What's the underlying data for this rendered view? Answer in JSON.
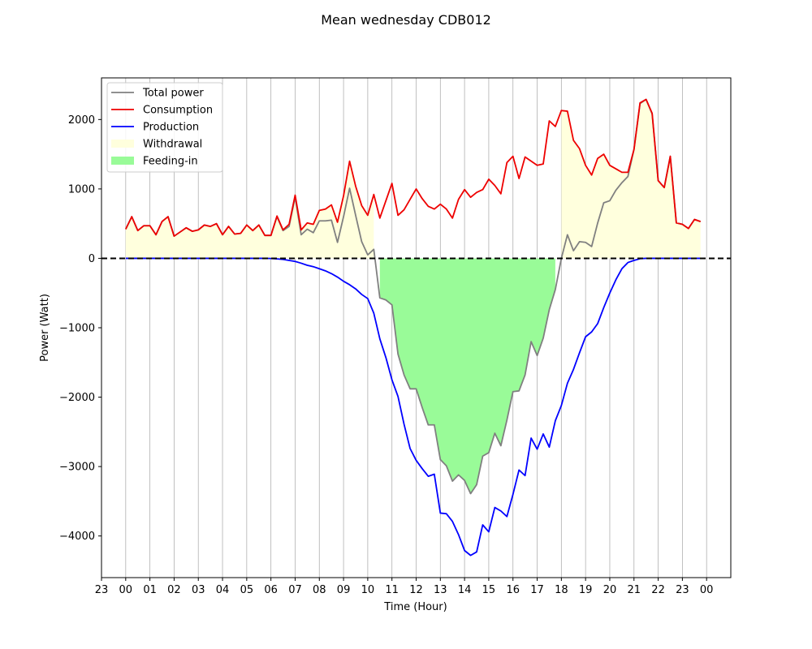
{
  "chart_data": {
    "type": "line",
    "title": "Mean wednesday CDB012",
    "xlabel": "Time (Hour)",
    "ylabel": "Power (Watt)",
    "xlim": [
      -1.0,
      25.0
    ],
    "ylim": [
      -4600,
      2600
    ],
    "grid": "vertical",
    "legend_position": "top-left",
    "x_ticks": [
      -1,
      0,
      1,
      2,
      3,
      4,
      5,
      6,
      7,
      8,
      9,
      10,
      11,
      12,
      13,
      14,
      15,
      16,
      17,
      18,
      19,
      20,
      21,
      22,
      23,
      24
    ],
    "x_tick_labels": [
      "23",
      "00",
      "01",
      "02",
      "03",
      "04",
      "05",
      "06",
      "07",
      "08",
      "09",
      "10",
      "11",
      "12",
      "13",
      "14",
      "15",
      "16",
      "17",
      "18",
      "19",
      "20",
      "21",
      "22",
      "23",
      "00"
    ],
    "y_ticks": [
      -4000,
      -3000,
      -2000,
      -1000,
      0,
      1000,
      2000
    ],
    "y_tick_labels": [
      "−4000",
      "−3000",
      "−2000",
      "−1000",
      "0",
      "1000",
      "2000"
    ],
    "x_step_hours": 0.25,
    "series": [
      {
        "name": "Total power",
        "color": "#808080",
        "values": [
          420,
          600,
          400,
          470,
          470,
          340,
          530,
          600,
          320,
          380,
          440,
          390,
          410,
          480,
          460,
          500,
          340,
          460,
          350,
          360,
          480,
          400,
          480,
          330,
          330,
          600,
          400,
          460,
          880,
          340,
          420,
          370,
          540,
          540,
          550,
          230,
          600,
          1010,
          620,
          240,
          50,
          130,
          -570,
          -600,
          -670,
          -1380,
          -1680,
          -1880,
          -1880,
          -2150,
          -2400,
          -2400,
          -2900,
          -2990,
          -3210,
          -3120,
          -3200,
          -3390,
          -3260,
          -2850,
          -2800,
          -2520,
          -2700,
          -2330,
          -1920,
          -1910,
          -1680,
          -1200,
          -1400,
          -1150,
          -740,
          -450,
          0,
          340,
          110,
          240,
          230,
          170,
          510,
          800,
          830,
          980,
          1090,
          1180,
          1570,
          2230,
          2290,
          2080,
          1120,
          1020,
          1470,
          510,
          490,
          430,
          560,
          530
        ]
      },
      {
        "name": "Consumption",
        "color": "#ee0000",
        "values": [
          420,
          600,
          400,
          470,
          470,
          340,
          530,
          600,
          320,
          380,
          440,
          390,
          410,
          480,
          460,
          500,
          340,
          460,
          350,
          360,
          480,
          400,
          480,
          330,
          330,
          610,
          410,
          490,
          910,
          410,
          510,
          490,
          690,
          710,
          770,
          520,
          900,
          1400,
          1040,
          760,
          620,
          920,
          580,
          830,
          1080,
          620,
          700,
          850,
          1000,
          860,
          750,
          710,
          780,
          710,
          580,
          850,
          990,
          880,
          950,
          990,
          1140,
          1050,
          930,
          1380,
          1470,
          1150,
          1460,
          1400,
          1340,
          1360,
          1980,
          1900,
          2130,
          2120,
          1700,
          1580,
          1340,
          1200,
          1440,
          1500,
          1340,
          1290,
          1240,
          1240,
          1570,
          2240,
          2290,
          2090,
          1120,
          1020,
          1470,
          510,
          490,
          430,
          560,
          530
        ]
      },
      {
        "name": "Production",
        "color": "#0000ff",
        "values": [
          0,
          0,
          0,
          0,
          0,
          0,
          0,
          0,
          0,
          0,
          0,
          0,
          0,
          0,
          0,
          0,
          0,
          0,
          0,
          0,
          0,
          0,
          0,
          0,
          -2,
          -8,
          -15,
          -30,
          -45,
          -70,
          -100,
          -120,
          -150,
          -180,
          -220,
          -270,
          -330,
          -380,
          -440,
          -520,
          -580,
          -790,
          -1160,
          -1430,
          -1750,
          -1990,
          -2390,
          -2740,
          -2910,
          -3030,
          -3140,
          -3110,
          -3670,
          -3680,
          -3790,
          -3980,
          -4210,
          -4280,
          -4230,
          -3840,
          -3940,
          -3590,
          -3640,
          -3720,
          -3400,
          -3050,
          -3130,
          -2590,
          -2750,
          -2530,
          -2720,
          -2340,
          -2120,
          -1800,
          -1600,
          -1360,
          -1130,
          -1060,
          -940,
          -710,
          -500,
          -310,
          -150,
          -60,
          -30,
          -5,
          0,
          0,
          0,
          0,
          0,
          0,
          0,
          0,
          0,
          0
        ]
      }
    ],
    "fill_series": [
      {
        "name": "Withdrawal",
        "color": "#ffffdd",
        "type": "area"
      },
      {
        "name": "Feeding-in",
        "color": "#99fb98",
        "type": "area"
      }
    ],
    "reference_line": {
      "y": 0,
      "style": "dashed",
      "color": "#000000"
    }
  }
}
